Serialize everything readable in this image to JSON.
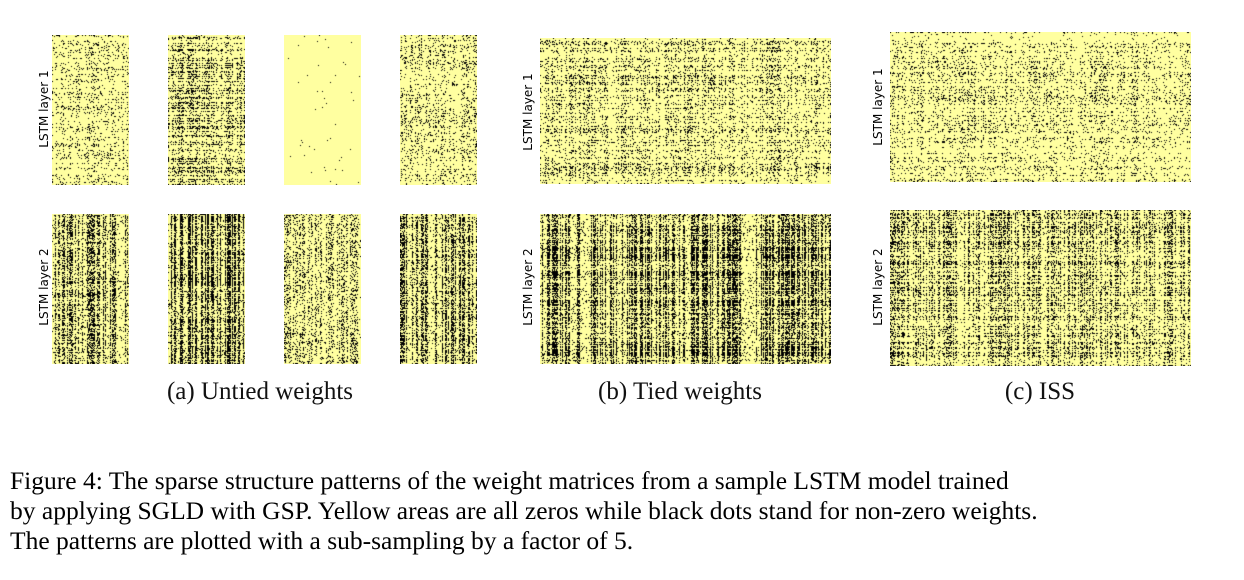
{
  "figure": {
    "panels": [
      {
        "id": "a",
        "caption": "(a)  Untied weights",
        "rows": [
          "LSTM layer 1",
          "LSTM layer 2"
        ]
      },
      {
        "id": "b",
        "caption": "(b)  Tied weights",
        "rows": [
          "LSTM layer 1",
          "LSTM layer 2"
        ]
      },
      {
        "id": "c",
        "caption": "(c)  ISS",
        "rows": [
          "LSTM layer 1",
          "LSTM layer 2"
        ]
      }
    ],
    "caption_lines": [
      "Figure 4: The sparse structure patterns of the weight matrices from a sample LSTM model trained",
      "by applying SGLD with GSP. Yellow areas are all zeros while black dots stand for non-zero weights.",
      "The patterns are plotted with a sub-sampling by a factor of 5."
    ],
    "colors": {
      "zero": "#ffffa0",
      "nonzero": "#000000"
    }
  }
}
